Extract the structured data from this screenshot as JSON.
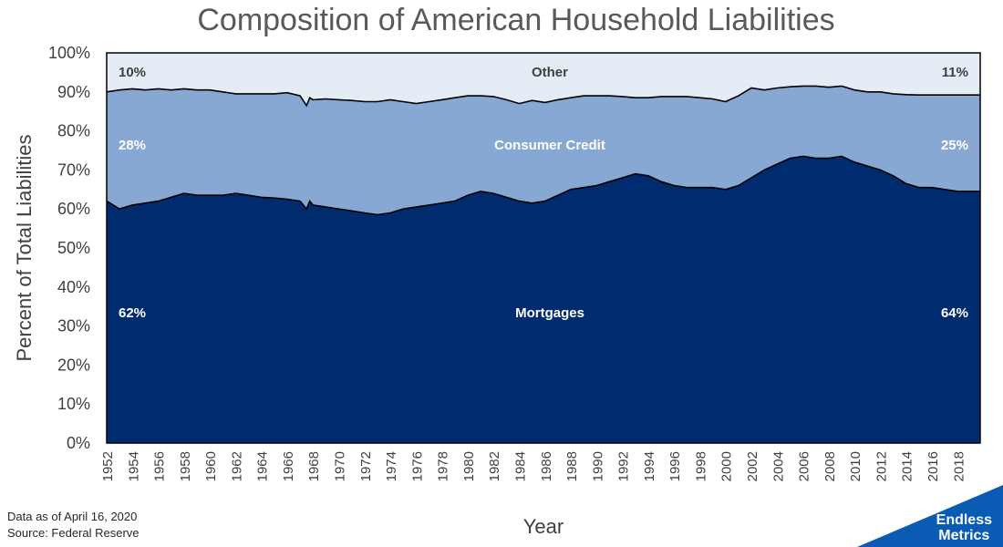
{
  "chart_data": {
    "type": "area",
    "stacked": true,
    "normalized": true,
    "title": "Composition of American Household Liabilities",
    "xlabel": "Year",
    "ylabel": "Percent of Total Liabilities",
    "xlim": [
      1952,
      2019.75
    ],
    "ylim": [
      0,
      100
    ],
    "y_ticks": [
      "0%",
      "10%",
      "20%",
      "30%",
      "40%",
      "50%",
      "60%",
      "70%",
      "80%",
      "90%",
      "100%"
    ],
    "x_ticks": [
      "1952",
      "1954",
      "1956",
      "1958",
      "1960",
      "1962",
      "1964",
      "1966",
      "1968",
      "1970",
      "1972",
      "1974",
      "1976",
      "1978",
      "1980",
      "1982",
      "1984",
      "1986",
      "1988",
      "1990",
      "1992",
      "1994",
      "1996",
      "1998",
      "2000",
      "2002",
      "2004",
      "2006",
      "2008",
      "2010",
      "2012",
      "2014",
      "2016",
      "2018"
    ],
    "grid": false,
    "legend": "none",
    "x": [
      1952,
      1953,
      1954,
      1955,
      1956,
      1957,
      1958,
      1959,
      1960,
      1961,
      1962,
      1963,
      1964,
      1965,
      1966,
      1967,
      1967.5,
      1967.75,
      1968,
      1969,
      1970,
      1971,
      1972,
      1973,
      1974,
      1975,
      1976,
      1977,
      1978,
      1979,
      1980,
      1981,
      1982,
      1983,
      1984,
      1985,
      1986,
      1987,
      1988,
      1989,
      1990,
      1991,
      1992,
      1993,
      1994,
      1995,
      1996,
      1997,
      1998,
      1999,
      2000,
      2001,
      2002,
      2003,
      2004,
      2005,
      2006,
      2007,
      2008,
      2009,
      2010,
      2011,
      2012,
      2013,
      2014,
      2015,
      2016,
      2017,
      2018,
      2019,
      2019.75
    ],
    "mortgages_pct": [
      62,
      60,
      61,
      61.5,
      62,
      63,
      64,
      63.5,
      63.5,
      63.5,
      64,
      63.5,
      63,
      62.8,
      62.5,
      62,
      60,
      62,
      61,
      60.5,
      60,
      59.5,
      59,
      58.5,
      59,
      60,
      60.5,
      61,
      61.5,
      62,
      63.5,
      64.5,
      64,
      63,
      62,
      61.5,
      62,
      63.5,
      65,
      65.5,
      66,
      67,
      68,
      69,
      68.5,
      67,
      66,
      65.5,
      65.5,
      65.5,
      65,
      66,
      68,
      70,
      71.5,
      73,
      73.5,
      73,
      73,
      73.5,
      72,
      71,
      70,
      68.5,
      66.5,
      65.5,
      65.5,
      65,
      64.5,
      64.5,
      64.5
    ],
    "mortgages_plus_consumer_pct": [
      90,
      90.5,
      90.8,
      90.5,
      90.8,
      90.5,
      90.8,
      90.5,
      90.5,
      90,
      89.5,
      89.5,
      89.5,
      89.5,
      89.8,
      89,
      86.5,
      88.5,
      88,
      88.2,
      88,
      87.8,
      87.5,
      87.5,
      88,
      87.5,
      87,
      87.5,
      88,
      88.5,
      89,
      89,
      88.8,
      88,
      87,
      87.8,
      87.3,
      88,
      88.5,
      89,
      89,
      89,
      88.8,
      88.5,
      88.5,
      88.8,
      88.8,
      88.8,
      88.5,
      88.2,
      87.5,
      89,
      91,
      90.5,
      91,
      91.3,
      91.5,
      91.5,
      91.2,
      91.5,
      90.5,
      90,
      90,
      89.5,
      89.3,
      89.2,
      89.2,
      89.2,
      89.2,
      89.2,
      89.2
    ],
    "series": [
      {
        "name": "Mortgages",
        "color": "#002B6E",
        "label_start": "62%",
        "label_end": "64%"
      },
      {
        "name": "Consumer Credit",
        "color": "#86A8D3",
        "label_start": "28%",
        "label_end": "25%"
      },
      {
        "name": "Other",
        "color": "#E4ECF5",
        "label_start": "10%",
        "label_end": "11%"
      }
    ],
    "outline_color": "#000000"
  },
  "footnotes": {
    "date": "Data as of April 16, 2020",
    "source": "Source: Federal Reserve"
  },
  "brand": {
    "line1": "Endless",
    "line2": "Metrics",
    "color": "#0A5BB3"
  }
}
